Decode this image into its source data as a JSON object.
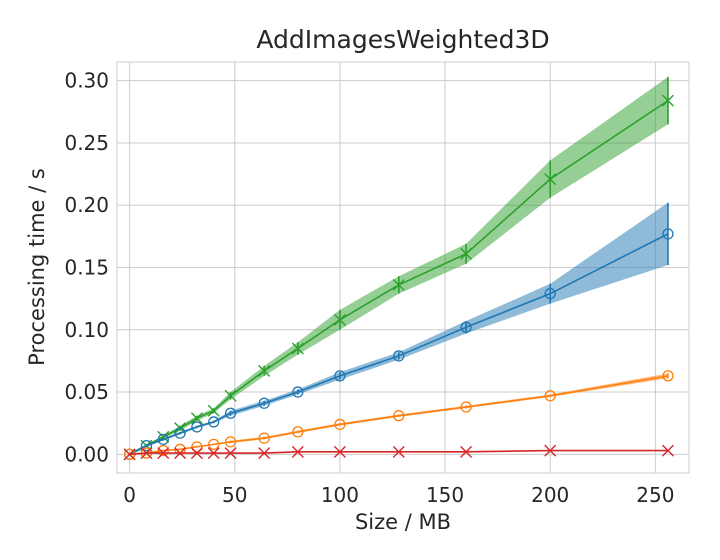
{
  "chart_data": {
    "type": "line",
    "title": "AddImagesWeighted3D",
    "xlabel": "Size / MB",
    "ylabel": "Processing time / s",
    "xlim": [
      -6,
      266
    ],
    "ylim": [
      -0.015,
      0.315
    ],
    "xticks": [
      0,
      50,
      100,
      150,
      200,
      250
    ],
    "yticks": [
      0.0,
      0.05,
      0.1,
      0.15,
      0.2,
      0.25,
      0.3
    ],
    "xtick_labels": [
      "0",
      "50",
      "100",
      "150",
      "200",
      "250"
    ],
    "ytick_labels": [
      "0.00",
      "0.05",
      "0.10",
      "0.15",
      "0.20",
      "0.25",
      "0.30"
    ],
    "grid": true,
    "series": [
      {
        "color": "#2ca02c",
        "marker": "x",
        "x": [
          0,
          8,
          16,
          24,
          32,
          40,
          48,
          64,
          80,
          100,
          128,
          160,
          200,
          256
        ],
        "y": [
          0.0,
          0.007,
          0.014,
          0.021,
          0.029,
          0.035,
          0.047,
          0.067,
          0.085,
          0.108,
          0.136,
          0.161,
          0.221,
          0.284
        ],
        "err": [
          0.001,
          0.001,
          0.001,
          0.002,
          0.002,
          0.002,
          0.003,
          0.004,
          0.005,
          0.008,
          0.007,
          0.008,
          0.015,
          0.019
        ]
      },
      {
        "color": "#1f77b4",
        "marker": "o",
        "x": [
          0,
          8,
          16,
          24,
          32,
          40,
          48,
          64,
          80,
          100,
          128,
          160,
          200,
          256
        ],
        "y": [
          0.0,
          0.007,
          0.012,
          0.017,
          0.022,
          0.026,
          0.033,
          0.041,
          0.05,
          0.063,
          0.079,
          0.102,
          0.129,
          0.177
        ],
        "err": [
          0.001,
          0.001,
          0.001,
          0.001,
          0.001,
          0.001,
          0.002,
          0.002,
          0.002,
          0.003,
          0.003,
          0.005,
          0.008,
          0.025
        ]
      },
      {
        "color": "#ff7f0e",
        "marker": "o",
        "x": [
          0,
          8,
          16,
          24,
          32,
          40,
          48,
          64,
          80,
          100,
          128,
          160,
          200,
          256
        ],
        "y": [
          0.0,
          0.001,
          0.003,
          0.004,
          0.006,
          0.008,
          0.01,
          0.013,
          0.018,
          0.024,
          0.031,
          0.038,
          0.047,
          0.063
        ],
        "err": [
          0.0,
          0.0,
          0.0,
          0.0,
          0.0,
          0.0,
          0.001,
          0.001,
          0.001,
          0.001,
          0.001,
          0.001,
          0.001,
          0.002
        ]
      },
      {
        "color": "#d62728",
        "marker": "x",
        "x": [
          0,
          8,
          16,
          24,
          32,
          40,
          48,
          64,
          80,
          100,
          128,
          160,
          200,
          256
        ],
        "y": [
          0.0,
          0.001,
          0.001,
          0.001,
          0.001,
          0.001,
          0.001,
          0.001,
          0.002,
          0.002,
          0.002,
          0.002,
          0.003,
          0.003
        ],
        "err": [
          0.0,
          0.0,
          0.0,
          0.0,
          0.0,
          0.0,
          0.0,
          0.0,
          0.0,
          0.0,
          0.0,
          0.0,
          0.0,
          0.0
        ]
      }
    ]
  }
}
